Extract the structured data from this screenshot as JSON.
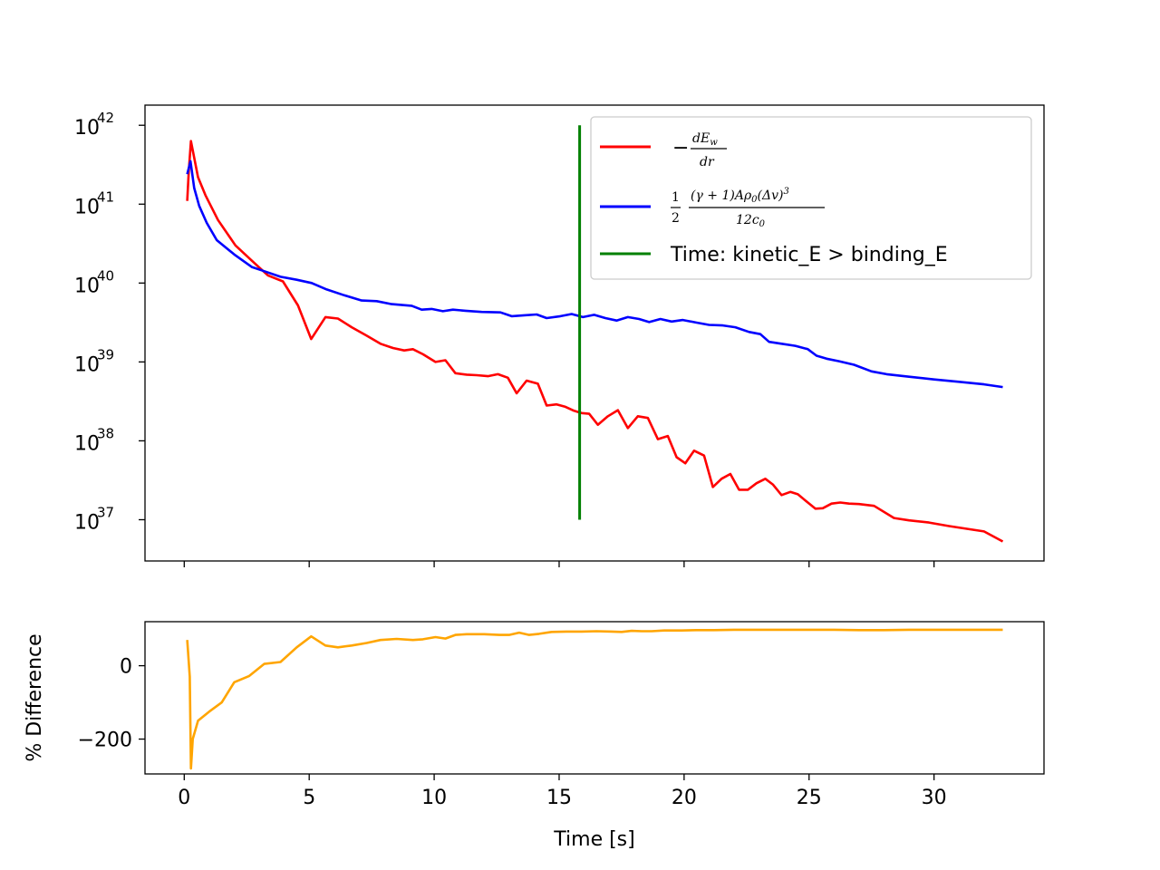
{
  "chart_data": [
    {
      "type": "line",
      "yscale": "log",
      "ylim": [
        3e+36,
        1.8e+42
      ],
      "xlim": [
        -1.57,
        34.4
      ],
      "yticks": [
        {
          "mant": "10",
          "exp": "37",
          "value": 1e+37
        },
        {
          "mant": "10",
          "exp": "38",
          "value": 1e+38
        },
        {
          "mant": "10",
          "exp": "39",
          "value": 1e+39
        },
        {
          "mant": "10",
          "exp": "40",
          "value": 1e+40
        },
        {
          "mant": "10",
          "exp": "41",
          "value": 1e+41
        },
        {
          "mant": "10",
          "exp": "42",
          "value": 1e+42
        }
      ],
      "xticks": [
        0,
        5,
        10,
        15,
        20,
        25,
        30
      ],
      "legend_position": "upper-right",
      "series": [
        {
          "name": "−dE_w/dr",
          "color": "#ff0000",
          "x": [
            0.12,
            0.18,
            0.27,
            0.55,
            0.85,
            1.35,
            2.05,
            2.8,
            3.35,
            3.95,
            4.55,
            5.08,
            5.65,
            6.15,
            6.7,
            7.3,
            7.85,
            8.35,
            8.8,
            9.15,
            9.55,
            10.05,
            10.45,
            10.85,
            11.3,
            11.7,
            12.15,
            12.55,
            12.95,
            13.3,
            13.7,
            14.15,
            14.5,
            14.9,
            15.25,
            15.6,
            15.9,
            16.2,
            16.55,
            16.95,
            17.35,
            17.75,
            18.15,
            18.55,
            18.95,
            19.35,
            19.7,
            20.05,
            20.4,
            20.8,
            21.15,
            21.5,
            21.85,
            22.2,
            22.55,
            22.9,
            23.25,
            23.55,
            23.9,
            24.25,
            24.55,
            24.9,
            25.25,
            25.55,
            25.9,
            26.25,
            26.6,
            27.0,
            27.6,
            28.4,
            29.0,
            29.8,
            30.6,
            31.4,
            32.0,
            32.75
          ],
          "y": [
            1.1e+41,
            2.6e+41,
            6.3e+41,
            2.2e+41,
            1.3e+41,
            6.3e+40,
            3e+40,
            1.8e+40,
            1.25e+40,
            1.05e+40,
            5.2e+39,
            1.95e+39,
            3.7e+39,
            3.55e+39,
            2.75e+39,
            2.15e+39,
            1.7e+39,
            1.5e+39,
            1.4e+39,
            1.45e+39,
            1.25e+39,
            1e+39,
            1.05e+39,
            7.2e+38,
            6.9e+38,
            6.8e+38,
            6.6e+38,
            7e+38,
            6.3e+38,
            4e+38,
            5.8e+38,
            5.3e+38,
            2.8e+38,
            2.9e+38,
            2.7e+38,
            2.4e+38,
            2.25e+38,
            2.2e+38,
            1.6e+38,
            2.05e+38,
            2.45e+38,
            1.45e+38,
            2.05e+38,
            1.95e+38,
            1.05e+38,
            1.15e+38,
            6.2e+37,
            5.2e+37,
            7.5e+37,
            6.5e+37,
            2.6e+37,
            3.3e+37,
            3.8e+37,
            2.4e+37,
            2.4e+37,
            2.9e+37,
            3.3e+37,
            2.8e+37,
            2.05e+37,
            2.25e+37,
            2.1e+37,
            1.7e+37,
            1.38e+37,
            1.4e+37,
            1.6e+37,
            1.65e+37,
            1.6e+37,
            1.58e+37,
            1.5e+37,
            1.05e+37,
            9.8e+36,
            9.2e+36,
            8.3e+36,
            7.6e+36,
            7.1e+36,
            5.3e+36
          ]
        },
        {
          "name": "½ (γ+1)Aρ₀(Δv)³ / 12c₀",
          "color": "#0000ff",
          "x": [
            0.12,
            0.25,
            0.4,
            0.6,
            0.9,
            1.3,
            2.0,
            2.7,
            3.1,
            3.85,
            4.5,
            5.1,
            5.7,
            6.4,
            7.1,
            7.7,
            8.3,
            9.1,
            9.5,
            9.9,
            10.35,
            10.75,
            11.25,
            11.9,
            12.65,
            13.1,
            13.6,
            14.1,
            14.5,
            15.05,
            15.5,
            15.95,
            16.4,
            16.85,
            17.3,
            17.75,
            18.2,
            18.6,
            19.05,
            19.5,
            19.95,
            20.5,
            21.0,
            21.55,
            22.05,
            22.6,
            23.05,
            23.4,
            23.9,
            24.45,
            24.95,
            25.3,
            25.7,
            26.2,
            26.8,
            27.5,
            28.1,
            29.0,
            30.0,
            31.0,
            32.0,
            32.75
          ],
          "y": [
            2.4e+41,
            3.5e+41,
            1.6e+41,
            9.5e+40,
            5.8e+40,
            3.5e+40,
            2.3e+40,
            1.6e+40,
            1.45e+40,
            1.2e+40,
            1.1e+40,
            1e+40,
            8.3e+39,
            7e+39,
            6e+39,
            5.9e+39,
            5.4e+39,
            5.15e+39,
            4.6e+39,
            4.7e+39,
            4.4e+39,
            4.6e+39,
            4.45e+39,
            4.3e+39,
            4.25e+39,
            3.8e+39,
            3.9e+39,
            4e+39,
            3.6e+39,
            3.8e+39,
            4.05e+39,
            3.7e+39,
            3.95e+39,
            3.6e+39,
            3.35e+39,
            3.7e+39,
            3.5e+39,
            3.2e+39,
            3.5e+39,
            3.25e+39,
            3.4e+39,
            3.15e+39,
            2.95e+39,
            2.9e+39,
            2.75e+39,
            2.4e+39,
            2.25e+39,
            1.8e+39,
            1.7e+39,
            1.6e+39,
            1.45e+39,
            1.2e+39,
            1.1e+39,
            1.02e+39,
            9.2e+38,
            7.6e+38,
            7e+38,
            6.5e+38,
            6e+38,
            5.6e+38,
            5.2e+38,
            4.8e+38
          ]
        },
        {
          "name": "Time: kinetic_E > binding_E",
          "color": "#008000",
          "x": [
            15.82,
            15.82
          ],
          "y": [
            1e+37,
            1e+42
          ]
        }
      ]
    },
    {
      "type": "line",
      "ylabel": "% Difference",
      "xlabel": "Time [s]",
      "ylim": [
        -295,
        120
      ],
      "xlim": [
        -1.57,
        34.4
      ],
      "yticks": [
        0,
        -200
      ],
      "xticks": [
        0,
        5,
        10,
        15,
        20,
        25,
        30
      ],
      "series": [
        {
          "color": "#ffa500",
          "x": [
            0.12,
            0.22,
            0.27,
            0.34,
            0.55,
            1.0,
            1.5,
            2.0,
            2.6,
            3.2,
            3.85,
            4.5,
            5.08,
            5.65,
            6.15,
            6.7,
            7.3,
            7.85,
            8.5,
            9.15,
            9.55,
            10.05,
            10.45,
            10.85,
            11.3,
            12.0,
            12.6,
            13.0,
            13.4,
            13.8,
            14.2,
            14.7,
            15.3,
            15.9,
            16.5,
            17.1,
            17.5,
            17.9,
            18.3,
            18.7,
            19.2,
            19.9,
            20.5,
            21.2,
            22.0,
            23.0,
            24.0,
            25.0,
            26.0,
            27.0,
            28.0,
            29.0,
            30.0,
            31.0,
            32.0,
            32.75
          ],
          "y": [
            70,
            -30,
            -280,
            -200,
            -150,
            -125,
            -100,
            -45,
            -28,
            5,
            10,
            50,
            80,
            55,
            50,
            55,
            62,
            70,
            73,
            70,
            72,
            78,
            74,
            84,
            86,
            86,
            84,
            84,
            90,
            84,
            87,
            92,
            93,
            93,
            94,
            93,
            92,
            95,
            94,
            94,
            96,
            96,
            97,
            97,
            98,
            98,
            98,
            98,
            98,
            97,
            97,
            98,
            98,
            98,
            98,
            98
          ]
        }
      ]
    }
  ]
}
